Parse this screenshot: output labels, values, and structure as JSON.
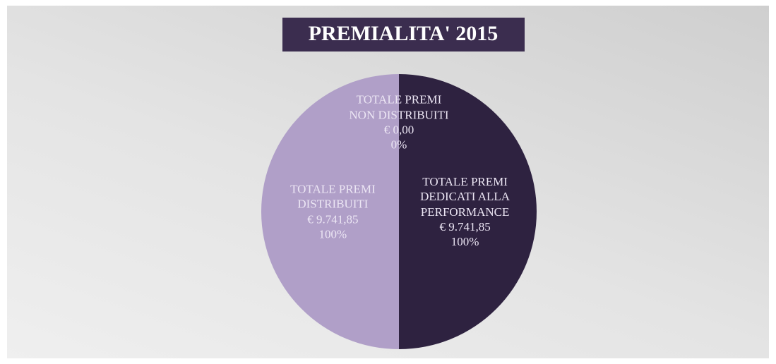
{
  "chart_data": {
    "type": "pie",
    "title": "PREMIALITA' 2015",
    "categories": [
      "TOTALE PREMI NON DISTRIBUITI",
      "TOTALE PREMI DEDICATI ALLA PERFORMANCE",
      "TOTALE PREMI DISTRIBUITI"
    ],
    "values": [
      0,
      9741.85,
      9741.85
    ],
    "value_labels": [
      "€ 0,00",
      "€ 9.741,85",
      "€ 9.741,85"
    ],
    "percent_labels": [
      "0%",
      "100%",
      "100%"
    ],
    "colors": [
      "#3a2d52",
      "#2e2240",
      "#b09fc8"
    ]
  }
}
